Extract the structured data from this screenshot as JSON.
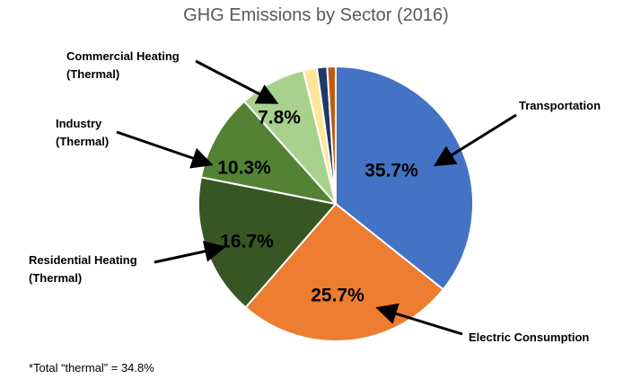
{
  "chart_data": {
    "type": "pie",
    "title": "GHG Emissions by Sector (2016)",
    "categories": [
      "Transportation",
      "Electric Consumption",
      "Residential Heating\n(Thermal)",
      "Industry\n(Thermal)",
      "Commercial Heating\n(Thermal)",
      null,
      null,
      null
    ],
    "values": [
      35.7,
      25.7,
      16.7,
      10.3,
      7.8,
      1.6,
      1.2,
      1.0
    ],
    "value_labels": [
      "35.7%",
      "25.7%",
      "16.7%",
      "10.3%",
      "7.8%",
      null,
      null,
      null
    ],
    "colors": [
      "#4472c4",
      "#ed7d31",
      "#375623",
      "#548235",
      "#a9d18e",
      "#ffe699",
      "#203864",
      "#c55a11"
    ],
    "annotation": "*Total “thermal” = 34.8%"
  }
}
